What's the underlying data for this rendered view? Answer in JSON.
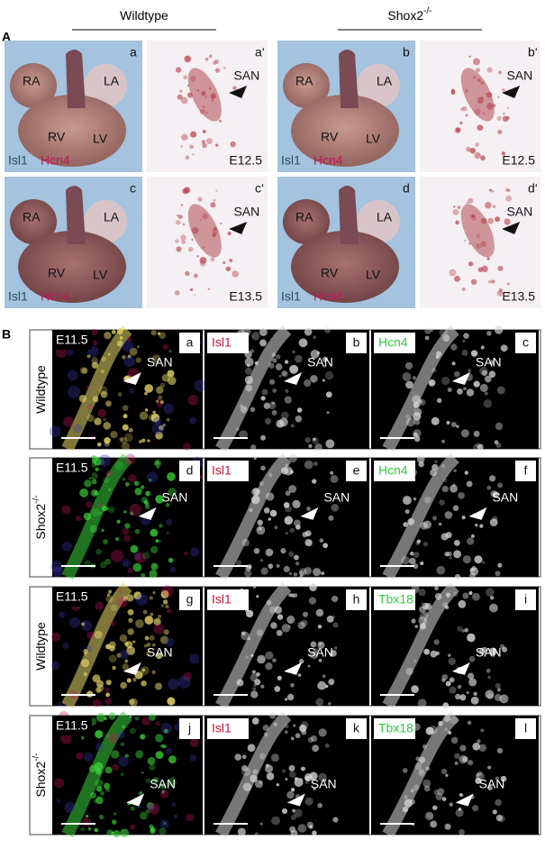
{
  "panel_a": {
    "label": "A",
    "columns": [
      {
        "genotype": "Wildtype"
      },
      {
        "genotype": "Shox2",
        "superscript": "-/-"
      }
    ],
    "tiles": [
      {
        "letter": "a",
        "chambers": [
          "RA",
          "LA",
          "RV",
          "LV"
        ],
        "stain_1": "Isl1",
        "stain_2": "Hcn4"
      },
      {
        "letter": "a‘",
        "region": "SAN",
        "stage": "E12.5"
      },
      {
        "letter": "b",
        "chambers": [
          "RA",
          "LA",
          "RV",
          "LV"
        ],
        "stain_1": "Isl1",
        "stain_2": "Hcn4"
      },
      {
        "letter": "b‘",
        "region": "SAN",
        "stage": "E12.5"
      },
      {
        "letter": "c",
        "chambers": [
          "RA",
          "LA",
          "RV",
          "LV"
        ],
        "stain_1": "Isl1",
        "stain_2": "Hcn4"
      },
      {
        "letter": "c‘",
        "region": "SAN",
        "stage": "E13.5"
      },
      {
        "letter": "d",
        "chambers": [
          "RA",
          "LA",
          "RV",
          "LV"
        ],
        "stain_1": "Isl1",
        "stain_2": "Hcn4"
      },
      {
        "letter": "d‘",
        "region": "SAN",
        "stage": "E13.5"
      }
    ]
  },
  "panel_b": {
    "label": "B",
    "rows": [
      {
        "genotype": "Wildtype",
        "tiles": [
          {
            "letter": "a",
            "stage": "E11.5",
            "region": "SAN"
          },
          {
            "letter": "b",
            "marker": "Isl1",
            "region": "SAN"
          },
          {
            "letter": "c",
            "marker": "Hcn4",
            "region": "SAN"
          }
        ]
      },
      {
        "genotype": "Shox2",
        "superscript": "-/-",
        "tiles": [
          {
            "letter": "d",
            "stage": "E11.5",
            "region": "SAN"
          },
          {
            "letter": "e",
            "marker": "Isl1",
            "region": "SAN"
          },
          {
            "letter": "f",
            "marker": "Hcn4",
            "region": "SAN"
          }
        ]
      },
      {
        "genotype": "Wildtype",
        "tiles": [
          {
            "letter": "g",
            "stage": "E11.5",
            "region": "SAN"
          },
          {
            "letter": "h",
            "marker": "Isl1",
            "region": "SAN"
          },
          {
            "letter": "i",
            "marker": "Tbx18",
            "region": "SAN"
          }
        ]
      },
      {
        "genotype": "Shox2",
        "superscript": "-/-",
        "tiles": [
          {
            "letter": "j",
            "stage": "E11.5",
            "region": "SAN"
          },
          {
            "letter": "k",
            "marker": "Isl1",
            "region": "SAN"
          },
          {
            "letter": "l",
            "marker": "Tbx18",
            "region": "SAN"
          }
        ]
      }
    ]
  }
}
